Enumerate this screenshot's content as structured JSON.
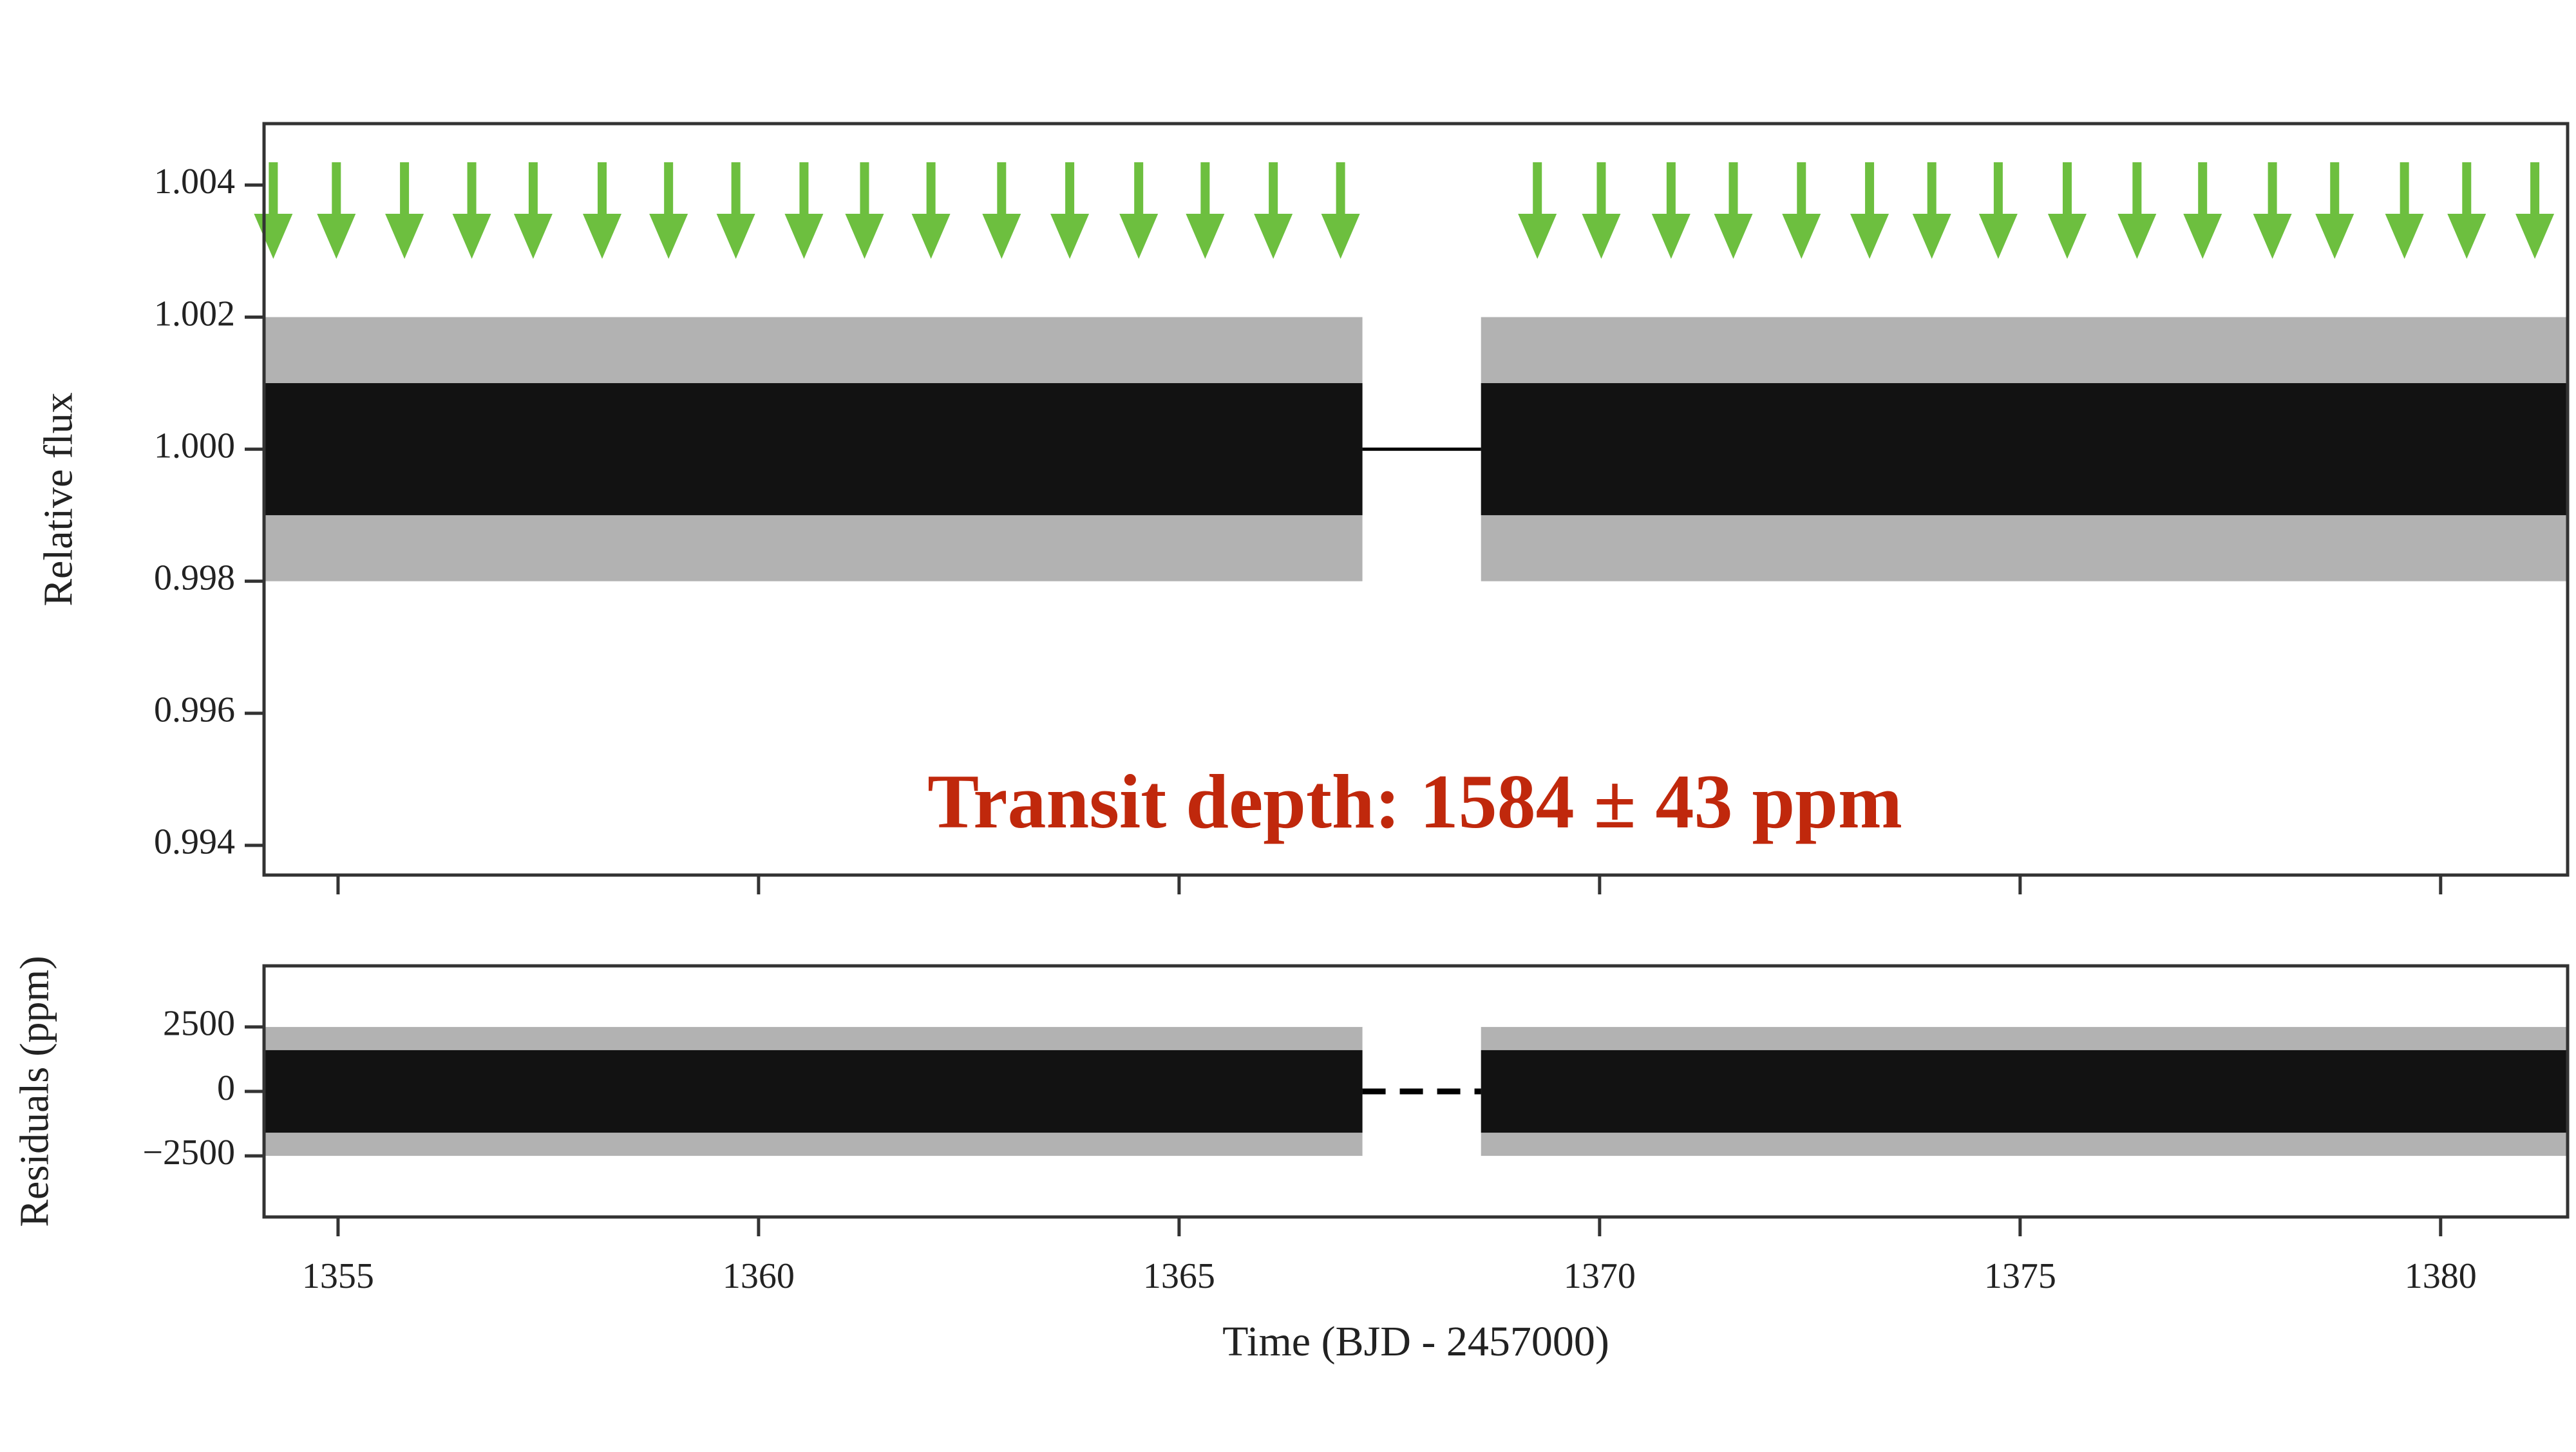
{
  "chart_data": [
    {
      "type": "line",
      "ylabel": "Relative flux",
      "xlim": [
        1354.12,
        1381.51
      ],
      "xticks": [
        1355,
        1360,
        1365,
        1370,
        1375,
        1380
      ],
      "ylim": [
        0.99355,
        1.00493
      ],
      "yticks": [
        {
          "value": 0.994,
          "label": "0.994"
        },
        {
          "value": 0.996,
          "label": "0.996"
        },
        {
          "value": 0.998,
          "label": "0.998"
        },
        {
          "value": 1.0,
          "label": "1.000"
        },
        {
          "value": 1.002,
          "label": "1.002"
        },
        {
          "value": 1.004,
          "label": "1.004"
        }
      ],
      "color": "#000000",
      "bands": [
        {
          "x": [
            1354.12,
            1367.18
          ],
          "inner": [
            0.999,
            1.001
          ],
          "outer": [
            0.998,
            1.002
          ]
        },
        {
          "x": [
            1368.59,
            1381.51
          ],
          "inner": [
            0.999,
            1.001
          ],
          "outer": [
            0.998,
            1.002
          ]
        }
      ],
      "model": {
        "x": [
          1367.18,
          1368.59
        ],
        "values": [
          1.0,
          1.0
        ],
        "dashed": false
      },
      "transits": {
        "color": "#6dbf3f",
        "x": [
          1354.23,
          1354.98,
          1355.79,
          1356.59,
          1357.32,
          1358.14,
          1358.93,
          1359.73,
          1360.54,
          1361.26,
          1362.05,
          1362.89,
          1363.7,
          1364.52,
          1365.31,
          1366.12,
          1366.92,
          1369.26,
          1370.02,
          1370.85,
          1371.59,
          1372.4,
          1373.21,
          1373.95,
          1374.74,
          1375.56,
          1376.39,
          1377.17,
          1378.0,
          1378.74,
          1379.57,
          1380.31,
          1381.12
        ]
      },
      "annotation": {
        "text": "Transit depth: 1584 ± 43 ppm",
        "color": "#c0280c"
      }
    },
    {
      "type": "line",
      "ylabel": "Residuals (ppm)",
      "xlabel": "Time (BJD - 2457000)",
      "xlim": [
        1354.12,
        1381.51
      ],
      "xticks": [
        1355,
        1360,
        1365,
        1370,
        1375,
        1380
      ],
      "ylim": [
        -4870,
        4870
      ],
      "yticks": [
        {
          "value": -2500,
          "label": "−2500"
        },
        0,
        2500
      ],
      "color": "#000000",
      "bands": [
        {
          "x": [
            1354.12,
            1367.18
          ],
          "inner": [
            -1600,
            1600
          ],
          "outer": [
            -2500,
            2500
          ]
        },
        {
          "x": [
            1368.59,
            1381.51
          ],
          "inner": [
            -1600,
            1600
          ],
          "outer": [
            -2500,
            2500
          ]
        }
      ],
      "model": {
        "x": [
          1367.18,
          1368.59
        ],
        "values": [
          0,
          0
        ],
        "dashed": true
      }
    }
  ]
}
